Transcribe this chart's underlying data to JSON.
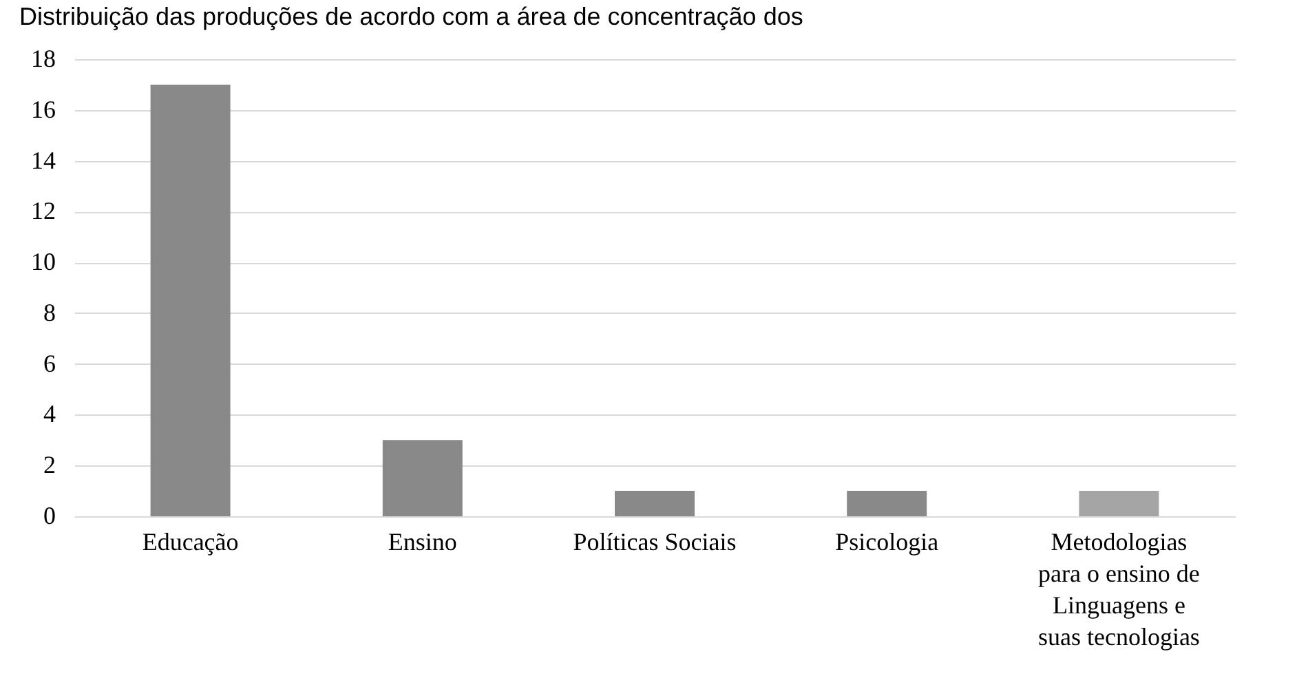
{
  "chart_data": {
    "type": "bar",
    "title": "Distribuição das produções de acordo com a área de concentração dos",
    "categories": [
      "Educação",
      "Ensino",
      "Políticas Sociais",
      "Psicologia",
      "Metodologias para o ensino de Linguagens e suas tecnologias"
    ],
    "values": [
      17,
      3,
      1,
      1,
      1
    ],
    "colors": [
      "#898989",
      "#898989",
      "#898989",
      "#898989",
      "#a5a5a5"
    ],
    "ylim": [
      0,
      18
    ],
    "yticks": [
      0,
      2,
      4,
      6,
      8,
      10,
      12,
      14,
      16,
      18
    ],
    "grid": "y"
  }
}
